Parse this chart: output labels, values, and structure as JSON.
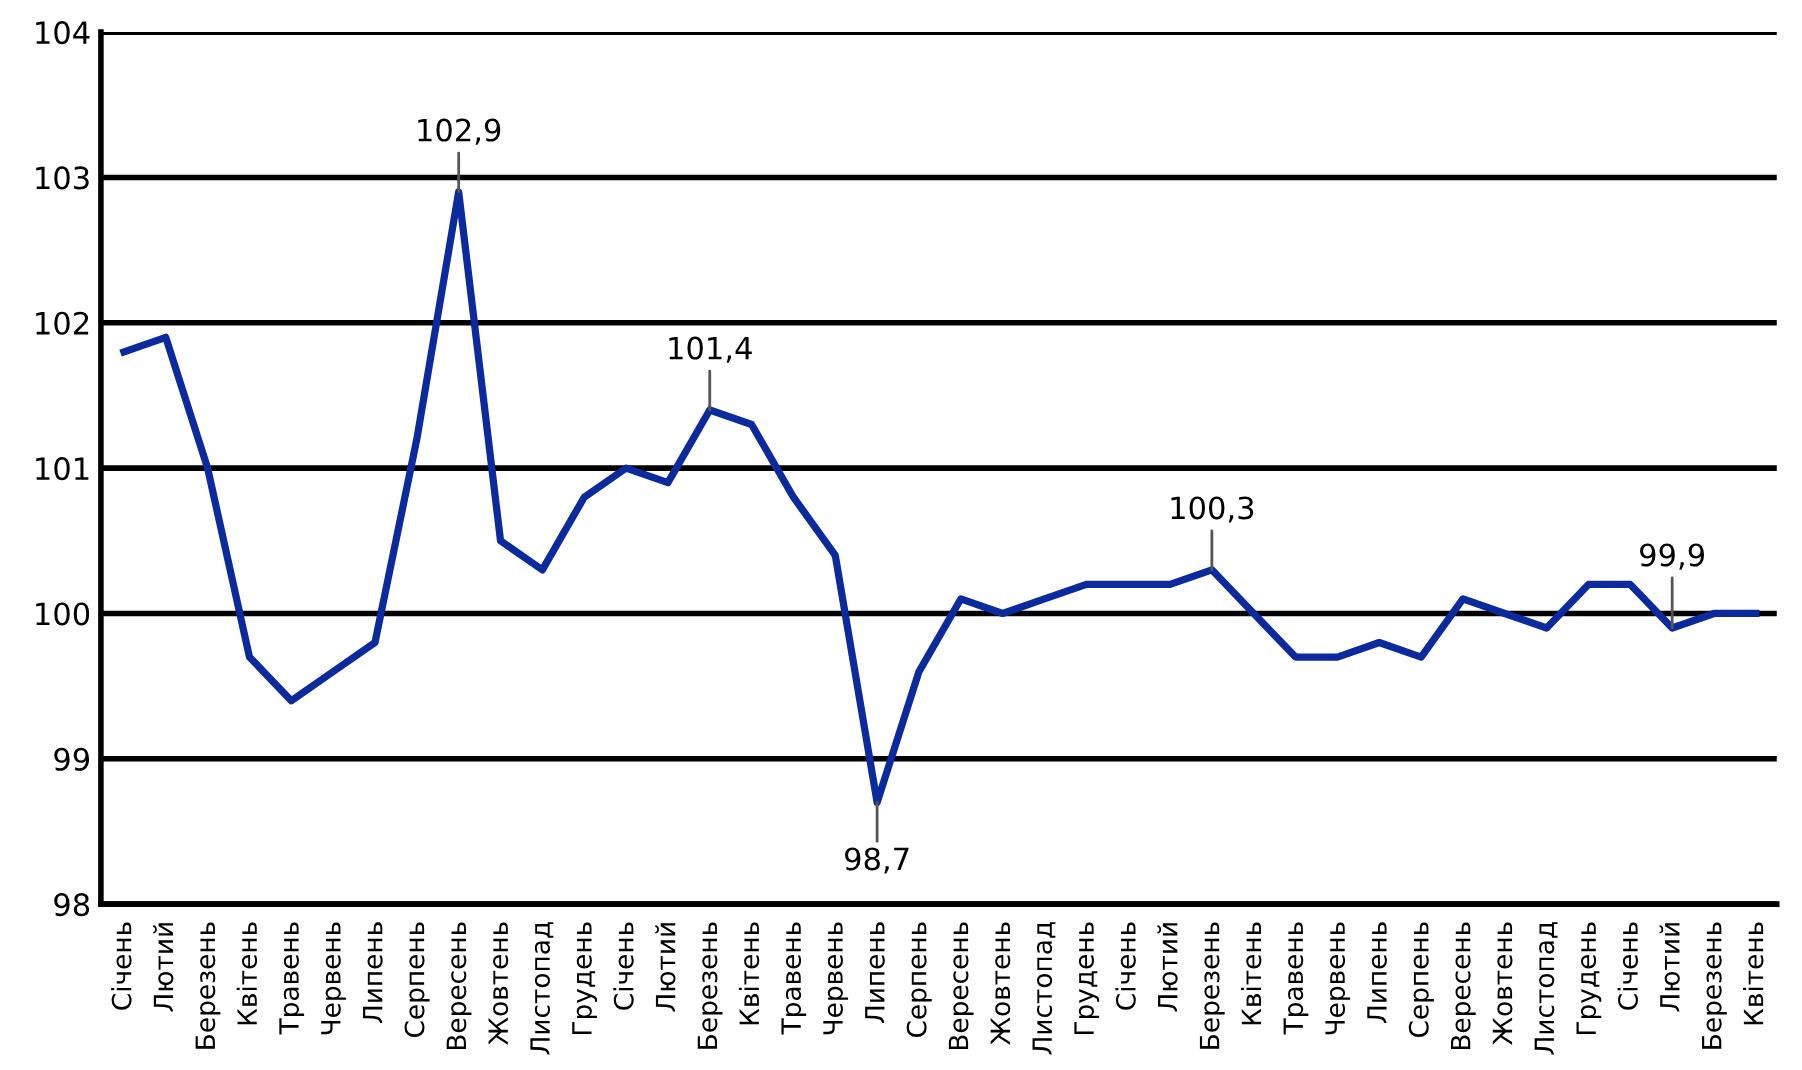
{
  "chart_data": {
    "type": "line",
    "categories": [
      "Січень",
      "Лютий",
      "Березень",
      "Квітень",
      "Травень",
      "Червень",
      "Липень",
      "Серпень",
      "Вересень",
      "Жовтень",
      "Листопад",
      "Грудень",
      "Січень",
      "Лютий",
      "Березень",
      "Квітень",
      "Травень",
      "Червень",
      "Липень",
      "Серпень",
      "Вересень",
      "Жовтень",
      "Листопад",
      "Грудень",
      "Січень",
      "Лютий",
      "Березень",
      "Квітень",
      "Травень",
      "Червень",
      "Липень",
      "Серпень",
      "Вересень",
      "Жовтень",
      "Листопад",
      "Грудень",
      "Січень",
      "Лютий",
      "Березень",
      "Квітень"
    ],
    "series": [
      {
        "color": "#0b2a9e",
        "values": [
          101.8,
          101.9,
          101.0,
          99.7,
          99.4,
          99.6,
          99.8,
          101.2,
          102.9,
          100.5,
          100.3,
          100.8,
          101.0,
          100.9,
          101.4,
          101.3,
          100.8,
          100.4,
          98.7,
          99.6,
          100.1,
          100.0,
          100.1,
          100.2,
          100.2,
          100.2,
          100.3,
          100.0,
          99.7,
          99.7,
          99.8,
          99.7,
          100.1,
          100.0,
          99.9,
          100.2,
          100.2,
          99.9,
          100.0,
          100.0
        ]
      }
    ],
    "ylim": [
      98,
      104
    ],
    "yticks": [
      98,
      99,
      100,
      101,
      102,
      103,
      104
    ],
    "grid": "y",
    "legend": false,
    "marker": "none",
    "line_style": "solid",
    "annotations": [
      {
        "text": "102,9",
        "y": 102.9
      },
      {
        "text": "101,4",
        "y": 101.4
      },
      {
        "text": "98,7",
        "y": 98.7
      },
      {
        "text": "100,3",
        "y": 100.3
      },
      {
        "text": "99,9",
        "y": 99.9
      }
    ]
  }
}
